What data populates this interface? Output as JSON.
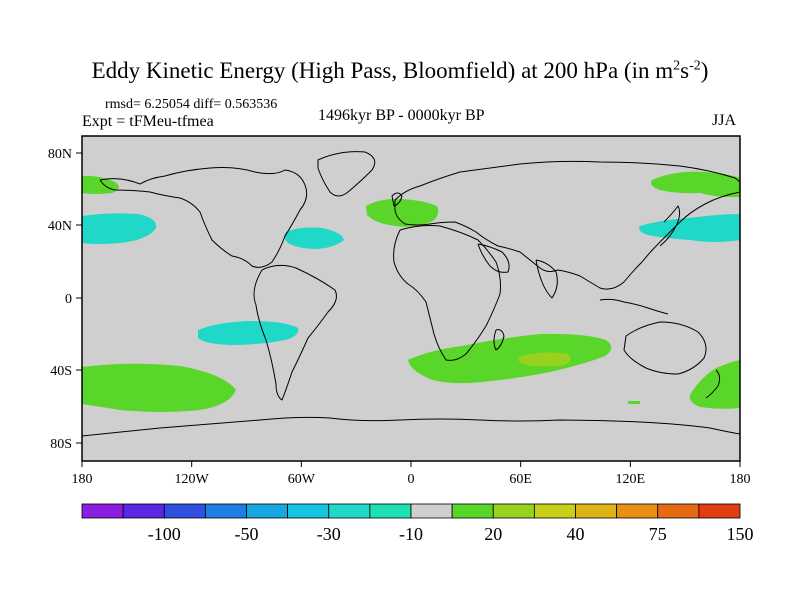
{
  "title": {
    "main": "Eddy Kinetic Energy (High Pass, Bloomfield) at 200 hPa (in m",
    "sup1": "2",
    "mid": "s",
    "sup2": "-2",
    "end": ")"
  },
  "stats": "rmsd= 6.25054 diff= 0.563536",
  "expt": "Expt = tFMeu-tfmea",
  "period": "1496kyr BP - 0000kyr BP",
  "season": "JJA",
  "axes": {
    "lat_ticks": [
      "80N",
      "40N",
      "0",
      "40S",
      "80S"
    ],
    "lon_ticks": [
      "180",
      "120W",
      "60W",
      "0",
      "60E",
      "120E",
      "180"
    ]
  },
  "colorbar": {
    "colors": [
      "#8a1fe0",
      "#5a27e6",
      "#2f4fe0",
      "#1f7fe0",
      "#17a6e0",
      "#17c4e0",
      "#20d8c8",
      "#1fe0b0",
      "#cfcfcf",
      "#5ad52a",
      "#96d21e",
      "#c8cf19",
      "#dcb414",
      "#e89016",
      "#e66a14",
      "#e23c10"
    ],
    "labels": [
      "-100",
      "-50",
      "-30",
      "-10",
      "20",
      "40",
      "75",
      "150"
    ]
  },
  "legend_colors": {
    "land_outline": "#000000",
    "neutral": "#cfcfcf",
    "positive_low": "#5ad52a",
    "positive_mid": "#96d21e",
    "negative_low": "#20d8c8"
  }
}
